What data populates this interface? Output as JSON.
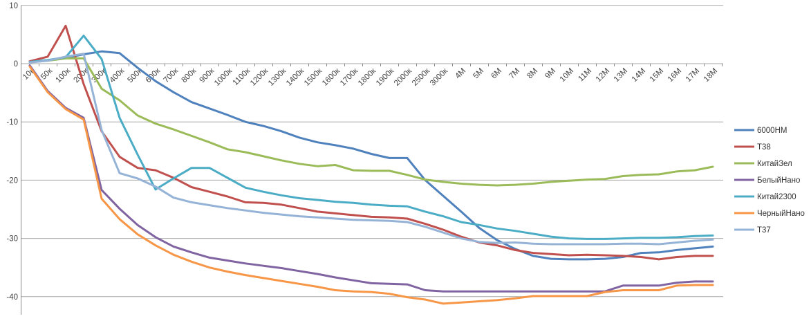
{
  "chart_data": {
    "type": "line",
    "title": "",
    "xlabel": "",
    "ylabel": "",
    "grid": true,
    "legend_position": "right",
    "ylim": [
      -45,
      10
    ],
    "y_ticks": [
      10,
      0,
      -10,
      -20,
      -30,
      -40
    ],
    "categories": [
      "10к",
      "50к",
      "100к",
      "200к",
      "300к",
      "400к",
      "500к",
      "600к",
      "700к",
      "800к",
      "900к",
      "1000к",
      "1100к",
      "1200к",
      "1300к",
      "1400к",
      "1500к",
      "1600к",
      "1700к",
      "1800к",
      "1900к",
      "2000к",
      "2500к",
      "3000к",
      "4M",
      "5M",
      "6M",
      "7M",
      "8M",
      "9M",
      "10M",
      "11M",
      "12M",
      "13M",
      "14M",
      "15M",
      "16M",
      "17M",
      "18M"
    ],
    "series": [
      {
        "name": "6000НМ",
        "color": "#4F81BD",
        "values": [
          0.3,
          0.6,
          1.0,
          1.6,
          2.1,
          1.8,
          -0.7,
          -3.0,
          -4.9,
          -6.6,
          -7.7,
          -8.8,
          -10.0,
          -10.7,
          -11.6,
          -12.7,
          -13.5,
          -14.0,
          -14.6,
          -15.5,
          -16.2,
          -16.2,
          -20.0,
          -22.7,
          -25.4,
          -28.2,
          -30.3,
          -31.8,
          -33.0,
          -33.5,
          -33.6,
          -33.6,
          -33.5,
          -33.2,
          -32.5,
          -32.4,
          -32.0,
          -31.7,
          -31.4
        ]
      },
      {
        "name": "Т38",
        "color": "#C0504D",
        "values": [
          0.4,
          1.2,
          6.5,
          -3.5,
          -11.6,
          -16.0,
          -17.9,
          -18.3,
          -19.6,
          -21.2,
          -22.0,
          -22.8,
          -23.8,
          -23.9,
          -24.2,
          -24.8,
          -25.4,
          -25.7,
          -26.0,
          -26.3,
          -26.4,
          -26.6,
          -27.5,
          -28.5,
          -29.7,
          -30.7,
          -31.2,
          -32.0,
          -32.5,
          -32.7,
          -32.9,
          -32.8,
          -32.9,
          -33.0,
          -33.2,
          -33.6,
          -33.2,
          -33.0,
          -33.0
        ]
      },
      {
        "name": "КитайЗел",
        "color": "#9BBB59",
        "values": [
          0.3,
          0.5,
          0.9,
          0.9,
          -4.3,
          -6.3,
          -8.9,
          -10.3,
          -11.3,
          -12.4,
          -13.5,
          -14.7,
          -15.2,
          -15.9,
          -16.6,
          -17.2,
          -17.6,
          -17.4,
          -18.3,
          -18.4,
          -18.4,
          -19.1,
          -19.9,
          -20.3,
          -20.6,
          -20.8,
          -20.9,
          -20.8,
          -20.6,
          -20.3,
          -20.1,
          -19.9,
          -19.8,
          -19.3,
          -19.1,
          -19.0,
          -18.5,
          -18.3,
          -17.7
        ]
      },
      {
        "name": "БелыйНано",
        "color": "#8064A2",
        "values": [
          -0.3,
          -4.7,
          -7.6,
          -9.3,
          -21.7,
          -24.9,
          -27.7,
          -29.8,
          -31.4,
          -32.4,
          -33.3,
          -33.8,
          -34.3,
          -34.7,
          -35.1,
          -35.6,
          -36.1,
          -36.7,
          -37.2,
          -37.7,
          -37.8,
          -37.9,
          -38.9,
          -39.1,
          -39.1,
          -39.1,
          -39.1,
          -39.1,
          -39.1,
          -39.1,
          -39.1,
          -39.1,
          -39.1,
          -38.1,
          -38.1,
          -38.1,
          -37.6,
          -37.4,
          -37.4
        ]
      },
      {
        "name": "Китай2300",
        "color": "#4BACC6",
        "values": [
          0.3,
          0.6,
          1.1,
          4.8,
          0.8,
          -9.3,
          -15.6,
          -21.6,
          -19.7,
          -17.9,
          -17.9,
          -19.6,
          -21.3,
          -22.0,
          -22.6,
          -23.1,
          -23.4,
          -23.7,
          -23.9,
          -24.2,
          -24.4,
          -24.5,
          -25.4,
          -26.2,
          -27.2,
          -27.7,
          -28.3,
          -28.7,
          -29.2,
          -29.7,
          -30.0,
          -30.1,
          -30.1,
          -30.0,
          -29.9,
          -29.9,
          -29.8,
          -29.6,
          -29.5
        ]
      },
      {
        "name": "ЧерныйНано",
        "color": "#F79646",
        "values": [
          -0.5,
          -4.9,
          -7.8,
          -9.6,
          -23.2,
          -26.7,
          -29.3,
          -31.2,
          -32.8,
          -34.0,
          -35.0,
          -35.7,
          -36.3,
          -36.8,
          -37.3,
          -37.8,
          -38.3,
          -38.9,
          -39.1,
          -39.2,
          -39.5,
          -40.1,
          -40.5,
          -41.2,
          -41.0,
          -40.8,
          -40.6,
          -40.3,
          -39.9,
          -39.9,
          -39.9,
          -39.9,
          -39.2,
          -38.9,
          -38.9,
          -38.9,
          -38.1,
          -38.0,
          -38.0
        ]
      },
      {
        "name": "Т37",
        "color": "#95B3D7",
        "values": [
          0.2,
          0.5,
          1.2,
          1.7,
          -11.4,
          -18.8,
          -19.7,
          -21.1,
          -23.0,
          -23.8,
          -24.3,
          -24.8,
          -25.2,
          -25.6,
          -25.9,
          -26.2,
          -26.4,
          -26.6,
          -26.8,
          -26.9,
          -27.0,
          -27.2,
          -28.0,
          -29.0,
          -30.0,
          -30.6,
          -30.8,
          -30.7,
          -30.9,
          -31.0,
          -31.0,
          -31.0,
          -31.0,
          -30.9,
          -30.9,
          -31.0,
          -30.7,
          -30.4,
          -30.2
        ]
      }
    ]
  },
  "style": {
    "background": "#FFFFFF",
    "grid_color": "#A6A6A6",
    "axis_color": "#898989",
    "tick_label_color": "#3F3F3F",
    "legend_text_color": "#333333"
  }
}
